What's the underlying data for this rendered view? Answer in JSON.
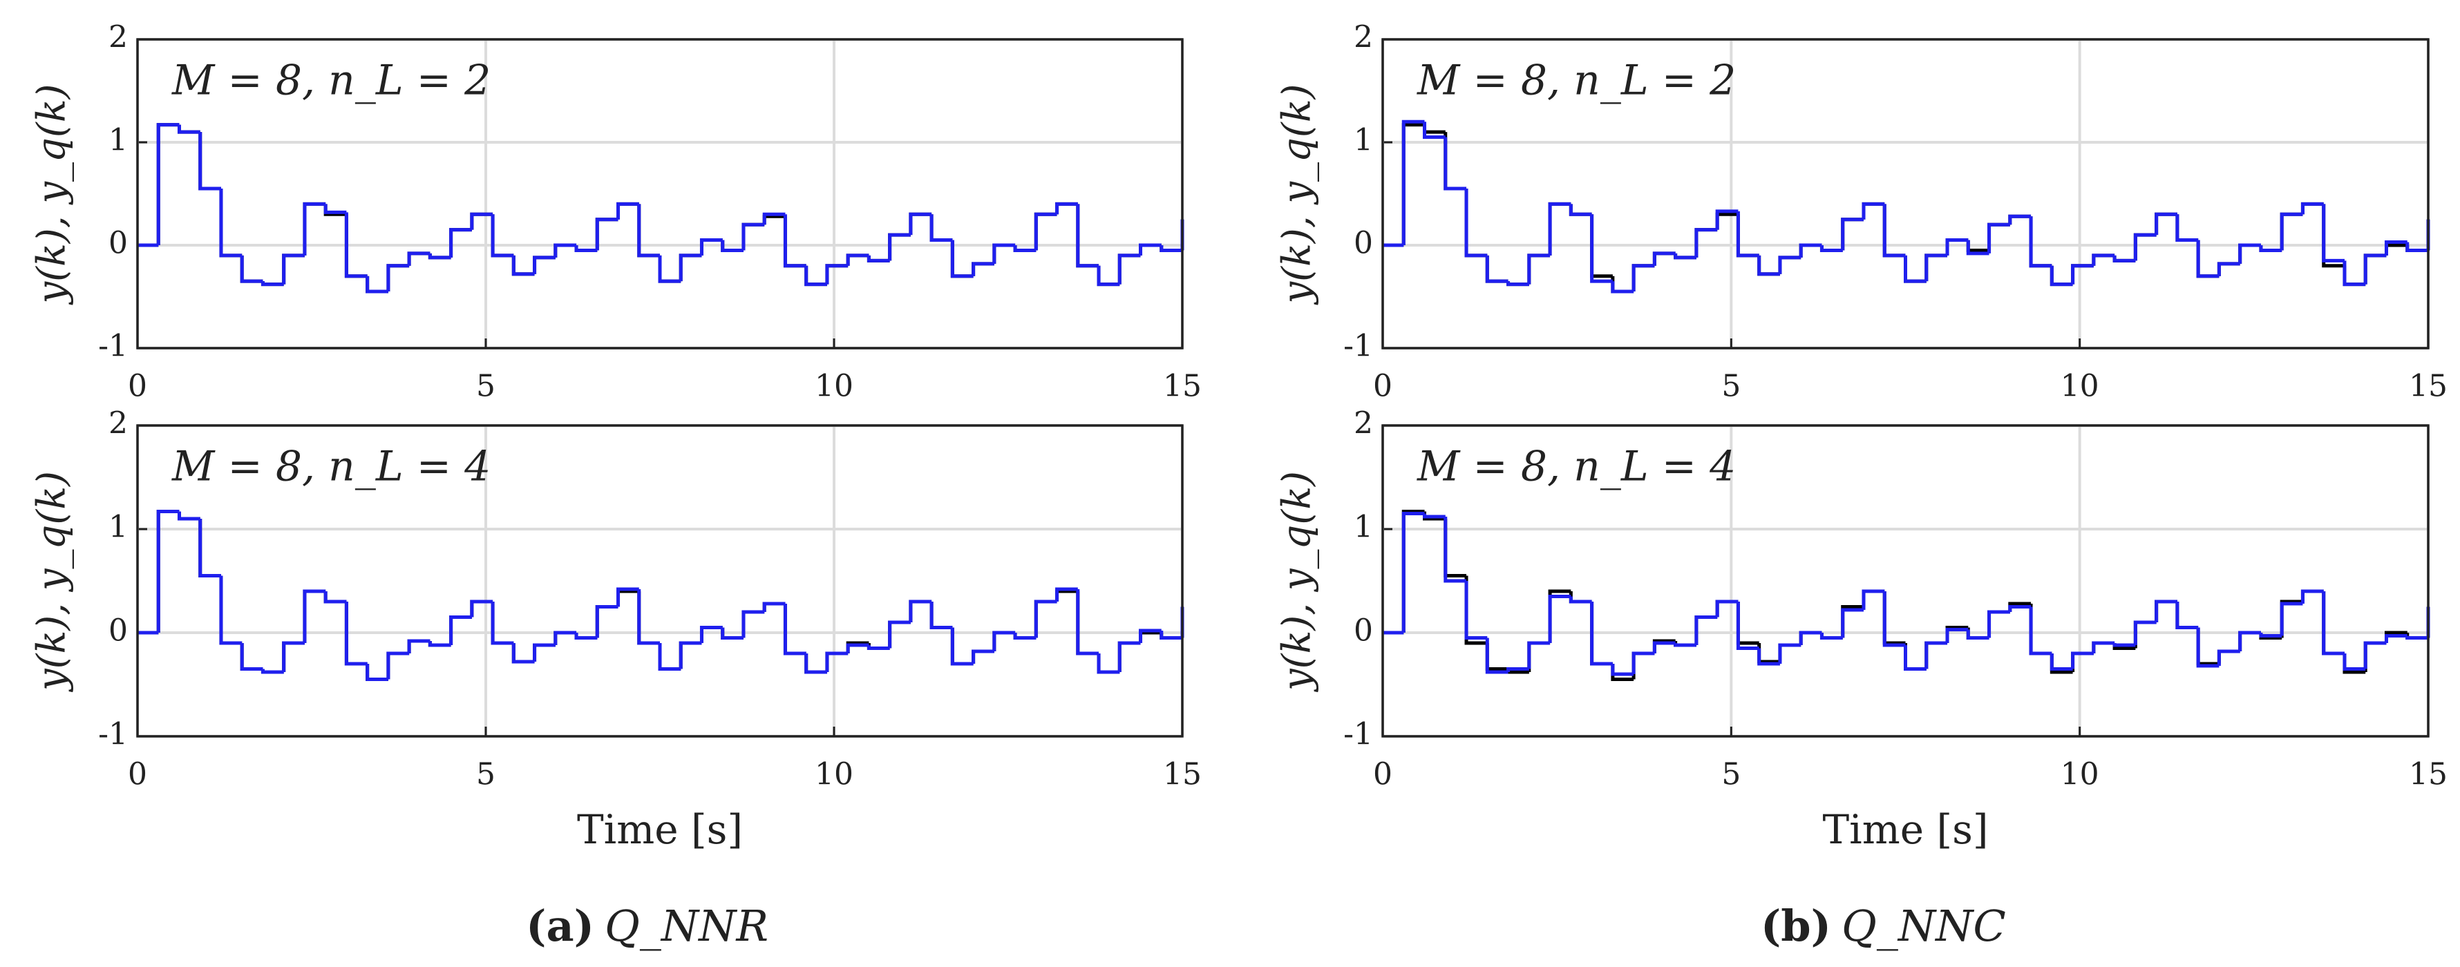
{
  "chart_data": [
    {
      "type": "step",
      "annotation": "M = 8,    n_L = 2",
      "ylabel": "y(k), y_q(k)",
      "x": [
        0,
        0.3,
        0.6,
        0.9,
        1.2,
        1.5,
        1.8,
        2.1,
        2.4,
        2.7,
        3.0,
        3.3,
        3.6,
        3.9,
        4.2,
        4.5,
        4.8,
        5.1,
        5.4,
        5.7,
        6.0,
        6.3,
        6.6,
        6.9,
        7.2,
        7.5,
        7.8,
        8.1,
        8.4,
        8.7,
        9.0,
        9.3,
        9.6,
        9.9,
        10.2,
        10.5,
        10.8,
        11.1,
        11.4,
        11.7,
        12.0,
        12.3,
        12.6,
        12.9,
        13.2,
        13.5,
        13.8,
        14.1,
        14.4,
        14.7,
        15.0
      ],
      "series": [
        {
          "color": "#000000",
          "values": [
            0,
            1.17,
            1.1,
            0.55,
            -0.1,
            -0.35,
            -0.38,
            -0.1,
            0.4,
            0.3,
            -0.3,
            -0.45,
            -0.2,
            -0.08,
            -0.12,
            0.15,
            0.3,
            -0.1,
            -0.28,
            -0.12,
            0,
            -0.05,
            0.25,
            0.4,
            -0.1,
            -0.35,
            -0.1,
            0.05,
            -0.05,
            0.2,
            0.28,
            -0.2,
            -0.38,
            -0.2,
            -0.1,
            -0.15,
            0.1,
            0.3,
            0.05,
            -0.3,
            -0.18,
            0,
            -0.05,
            0.3,
            0.4,
            -0.2,
            -0.38,
            -0.1,
            0,
            -0.05,
            0.25
          ]
        },
        {
          "color": "#1f1fee",
          "values": [
            0,
            1.17,
            1.1,
            0.55,
            -0.1,
            -0.35,
            -0.38,
            -0.1,
            0.4,
            0.32,
            -0.3,
            -0.45,
            -0.2,
            -0.08,
            -0.12,
            0.15,
            0.3,
            -0.1,
            -0.28,
            -0.12,
            0,
            -0.05,
            0.25,
            0.4,
            -0.1,
            -0.35,
            -0.1,
            0.05,
            -0.05,
            0.2,
            0.3,
            -0.2,
            -0.38,
            -0.2,
            -0.1,
            -0.15,
            0.1,
            0.3,
            0.05,
            -0.3,
            -0.18,
            0,
            -0.05,
            0.3,
            0.4,
            -0.2,
            -0.38,
            -0.1,
            0,
            -0.05,
            0.25
          ]
        }
      ],
      "xlim": [
        0,
        15
      ],
      "ylim": [
        -1,
        2
      ],
      "xticks": [
        0,
        5,
        10,
        15
      ],
      "yticks": [
        -1,
        0,
        1,
        2
      ],
      "grid": true
    },
    {
      "type": "step",
      "annotation": "M = 8,    n_L = 4",
      "ylabel": "y(k), y_q(k)",
      "xlabel": "Time [s]",
      "x": [
        0,
        0.3,
        0.6,
        0.9,
        1.2,
        1.5,
        1.8,
        2.1,
        2.4,
        2.7,
        3.0,
        3.3,
        3.6,
        3.9,
        4.2,
        4.5,
        4.8,
        5.1,
        5.4,
        5.7,
        6.0,
        6.3,
        6.6,
        6.9,
        7.2,
        7.5,
        7.8,
        8.1,
        8.4,
        8.7,
        9.0,
        9.3,
        9.6,
        9.9,
        10.2,
        10.5,
        10.8,
        11.1,
        11.4,
        11.7,
        12.0,
        12.3,
        12.6,
        12.9,
        13.2,
        13.5,
        13.8,
        14.1,
        14.4,
        14.7,
        15.0
      ],
      "series": [
        {
          "color": "#000000",
          "values": [
            0,
            1.17,
            1.1,
            0.55,
            -0.1,
            -0.35,
            -0.38,
            -0.1,
            0.4,
            0.3,
            -0.3,
            -0.45,
            -0.2,
            -0.08,
            -0.12,
            0.15,
            0.3,
            -0.1,
            -0.28,
            -0.12,
            0,
            -0.05,
            0.25,
            0.4,
            -0.1,
            -0.35,
            -0.1,
            0.05,
            -0.05,
            0.2,
            0.28,
            -0.2,
            -0.38,
            -0.2,
            -0.1,
            -0.15,
            0.1,
            0.3,
            0.05,
            -0.3,
            -0.18,
            0,
            -0.05,
            0.3,
            0.4,
            -0.2,
            -0.38,
            -0.1,
            0,
            -0.05,
            0.25
          ]
        },
        {
          "color": "#1f1fee",
          "values": [
            0,
            1.17,
            1.1,
            0.55,
            -0.1,
            -0.35,
            -0.38,
            -0.1,
            0.4,
            0.3,
            -0.3,
            -0.45,
            -0.2,
            -0.08,
            -0.12,
            0.15,
            0.3,
            -0.1,
            -0.28,
            -0.12,
            0,
            -0.05,
            0.25,
            0.42,
            -0.1,
            -0.35,
            -0.1,
            0.05,
            -0.05,
            0.2,
            0.28,
            -0.2,
            -0.38,
            -0.2,
            -0.12,
            -0.15,
            0.1,
            0.3,
            0.05,
            -0.3,
            -0.18,
            0,
            -0.05,
            0.3,
            0.42,
            -0.2,
            -0.38,
            -0.1,
            0.02,
            -0.05,
            0.25
          ]
        }
      ],
      "xlim": [
        0,
        15
      ],
      "ylim": [
        -1,
        2
      ],
      "xticks": [
        0,
        5,
        10,
        15
      ],
      "yticks": [
        -1,
        0,
        1,
        2
      ],
      "grid": true
    },
    {
      "type": "step",
      "annotation": "M = 8,    n_L = 2",
      "ylabel": "y(k), y_q(k)",
      "x": [
        0,
        0.3,
        0.6,
        0.9,
        1.2,
        1.5,
        1.8,
        2.1,
        2.4,
        2.7,
        3.0,
        3.3,
        3.6,
        3.9,
        4.2,
        4.5,
        4.8,
        5.1,
        5.4,
        5.7,
        6.0,
        6.3,
        6.6,
        6.9,
        7.2,
        7.5,
        7.8,
        8.1,
        8.4,
        8.7,
        9.0,
        9.3,
        9.6,
        9.9,
        10.2,
        10.5,
        10.8,
        11.1,
        11.4,
        11.7,
        12.0,
        12.3,
        12.6,
        12.9,
        13.2,
        13.5,
        13.8,
        14.1,
        14.4,
        14.7,
        15.0
      ],
      "series": [
        {
          "color": "#000000",
          "values": [
            0,
            1.17,
            1.1,
            0.55,
            -0.1,
            -0.35,
            -0.38,
            -0.1,
            0.4,
            0.3,
            -0.3,
            -0.45,
            -0.2,
            -0.08,
            -0.12,
            0.15,
            0.3,
            -0.1,
            -0.28,
            -0.12,
            0,
            -0.05,
            0.25,
            0.4,
            -0.1,
            -0.35,
            -0.1,
            0.05,
            -0.05,
            0.2,
            0.28,
            -0.2,
            -0.38,
            -0.2,
            -0.1,
            -0.15,
            0.1,
            0.3,
            0.05,
            -0.3,
            -0.18,
            0,
            -0.05,
            0.3,
            0.4,
            -0.2,
            -0.38,
            -0.1,
            0,
            -0.05,
            0.25
          ]
        },
        {
          "color": "#1f1fee",
          "values": [
            0,
            1.2,
            1.05,
            0.55,
            -0.1,
            -0.35,
            -0.38,
            -0.1,
            0.4,
            0.3,
            -0.35,
            -0.45,
            -0.2,
            -0.08,
            -0.12,
            0.15,
            0.33,
            -0.1,
            -0.28,
            -0.12,
            0,
            -0.05,
            0.25,
            0.4,
            -0.1,
            -0.35,
            -0.1,
            0.05,
            -0.08,
            0.2,
            0.28,
            -0.2,
            -0.38,
            -0.2,
            -0.1,
            -0.15,
            0.1,
            0.3,
            0.05,
            -0.3,
            -0.18,
            0,
            -0.05,
            0.3,
            0.4,
            -0.15,
            -0.38,
            -0.1,
            0.03,
            -0.05,
            0.25
          ]
        }
      ],
      "xlim": [
        0,
        15
      ],
      "ylim": [
        -1,
        2
      ],
      "xticks": [
        0,
        5,
        10,
        15
      ],
      "yticks": [
        -1,
        0,
        1,
        2
      ],
      "grid": true
    },
    {
      "type": "step",
      "annotation": "M = 8,    n_L = 4",
      "ylabel": "y(k), y_q(k)",
      "xlabel": "Time [s]",
      "x": [
        0,
        0.3,
        0.6,
        0.9,
        1.2,
        1.5,
        1.8,
        2.1,
        2.4,
        2.7,
        3.0,
        3.3,
        3.6,
        3.9,
        4.2,
        4.5,
        4.8,
        5.1,
        5.4,
        5.7,
        6.0,
        6.3,
        6.6,
        6.9,
        7.2,
        7.5,
        7.8,
        8.1,
        8.4,
        8.7,
        9.0,
        9.3,
        9.6,
        9.9,
        10.2,
        10.5,
        10.8,
        11.1,
        11.4,
        11.7,
        12.0,
        12.3,
        12.6,
        12.9,
        13.2,
        13.5,
        13.8,
        14.1,
        14.4,
        14.7,
        15.0
      ],
      "series": [
        {
          "color": "#000000",
          "values": [
            0,
            1.17,
            1.1,
            0.55,
            -0.1,
            -0.35,
            -0.38,
            -0.1,
            0.4,
            0.3,
            -0.3,
            -0.45,
            -0.2,
            -0.08,
            -0.12,
            0.15,
            0.3,
            -0.1,
            -0.28,
            -0.12,
            0,
            -0.05,
            0.25,
            0.4,
            -0.1,
            -0.35,
            -0.1,
            0.05,
            -0.05,
            0.2,
            0.28,
            -0.2,
            -0.38,
            -0.2,
            -0.1,
            -0.15,
            0.1,
            0.3,
            0.05,
            -0.3,
            -0.18,
            0,
            -0.05,
            0.3,
            0.4,
            -0.2,
            -0.38,
            -0.1,
            0,
            -0.05,
            0.25
          ]
        },
        {
          "color": "#1f1fee",
          "values": [
            0,
            1.15,
            1.12,
            0.5,
            -0.05,
            -0.38,
            -0.35,
            -0.1,
            0.35,
            0.3,
            -0.3,
            -0.4,
            -0.2,
            -0.1,
            -0.12,
            0.15,
            0.3,
            -0.15,
            -0.3,
            -0.12,
            0,
            -0.05,
            0.22,
            0.4,
            -0.12,
            -0.35,
            -0.1,
            0.03,
            -0.05,
            0.2,
            0.25,
            -0.2,
            -0.35,
            -0.2,
            -0.1,
            -0.12,
            0.1,
            0.3,
            0.05,
            -0.32,
            -0.18,
            0,
            -0.03,
            0.28,
            0.4,
            -0.2,
            -0.35,
            -0.1,
            -0.03,
            -0.05,
            0.25
          ]
        }
      ],
      "xlim": [
        0,
        15
      ],
      "ylim": [
        -1,
        2
      ],
      "xticks": [
        0,
        5,
        10,
        15
      ],
      "yticks": [
        -1,
        0,
        1,
        2
      ],
      "grid": true
    }
  ],
  "captions": [
    {
      "label": "(a)",
      "text": "Q_NNR"
    },
    {
      "label": "(b)",
      "text": "Q_NNC"
    }
  ]
}
